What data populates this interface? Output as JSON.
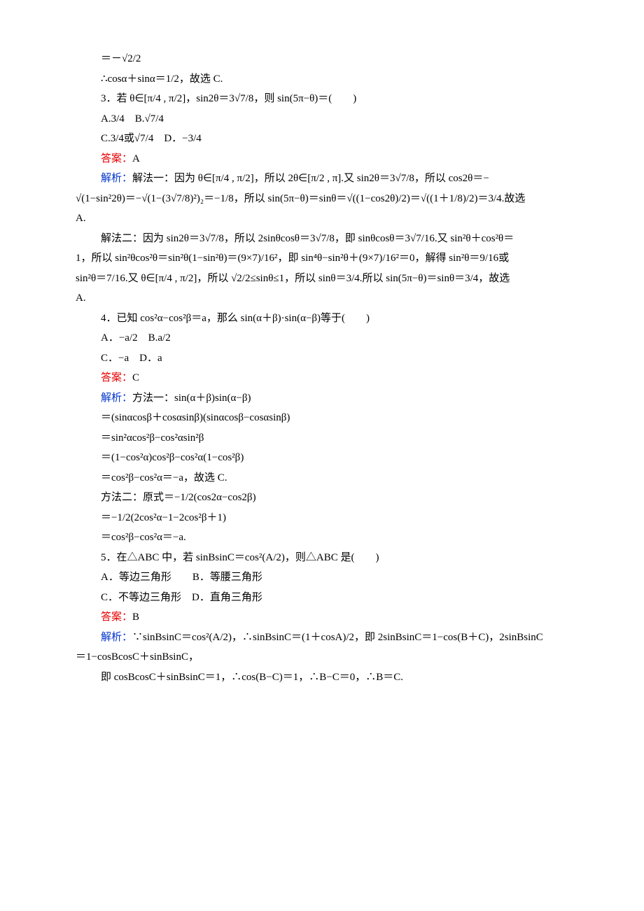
{
  "colors": {
    "text": "#000000",
    "answer": "#e60000",
    "analysis": "#0033cc",
    "bg": "#ffffff"
  },
  "typography": {
    "body_fontsize_pt": 11,
    "line_height": 1.9,
    "font_family": "Times New Roman / SimSun"
  },
  "q2_tail": {
    "line1": "＝－√2/2",
    "line2": "∴cosα＋sinα＝1/2，故选 C."
  },
  "q3": {
    "number": "3．",
    "stem": "若 θ∈[π/4 , π/2]，sin2θ＝3√7/8，则 sin(5π−θ)＝(　　)",
    "optA": "A.3/4",
    "optB": "B.√7/4",
    "optC": "C.3/4或√7/4",
    "optD": "D．−3/4",
    "answer_label": "答案：",
    "answer": "A",
    "analysis_label": "解析：",
    "m1a": "解法一：因为 θ∈[π/4 , π/2]，所以 2θ∈[π/2 , π].又 sin2θ＝3√7/8，所以 cos2θ＝−",
    "m1b": "√(1−sin²2θ)＝−√(1−(3√7/8)²)₂＝−1/8，所以 sin(5π−θ)＝sinθ＝√((1−cos2θ)/2)＝√((1＋1/8)/2)＝3/4.故选",
    "m1c": "A.",
    "m2a": "解法二：因为 sin2θ＝3√7/8，所以 2sinθcosθ＝3√7/8，即 sinθcosθ＝3√7/16.又 sin²θ＋cos²θ＝",
    "m2b": "1，所以 sin²θcos²θ＝sin²θ(1−sin²θ)＝(9×7)/16²，即 sin⁴θ−sin²θ＋(9×7)/16²＝0，解得 sin²θ＝9/16或",
    "m2c": "sin²θ＝7/16.又 θ∈[π/4 , π/2]，所以 √2/2≤sinθ≤1，所以 sinθ＝3/4.所以 sin(5π−θ)＝sinθ＝3/4，故选",
    "m2d": "A."
  },
  "q4": {
    "number": "4．",
    "stem": "已知 cos²α−cos²β＝a，那么 sin(α＋β)·sin(α−β)等于(　　)",
    "optA": "A．−a/2",
    "optB": "B.a/2",
    "optC": "C．−a",
    "optD": "D．a",
    "answer_label": "答案：",
    "answer": "C",
    "analysis_label": "解析：",
    "m1a": "方法一：sin(α＋β)sin(α−β)",
    "m1b": "＝(sinαcosβ＋cosαsinβ)(sinαcosβ−cosαsinβ)",
    "m1c": "＝sin²αcos²β−cos²αsin²β",
    "m1d": "＝(1−cos²α)cos²β−cos²α(1−cos²β)",
    "m1e": "＝cos²β−cos²α＝−a，故选 C.",
    "m2a": "方法二：原式＝−1/2(cos2α−cos2β)",
    "m2b": "＝−1/2(2cos²α−1−2cos²β＋1)",
    "m2c": "＝cos²β−cos²α＝−a."
  },
  "q5": {
    "number": "5．",
    "stem": "在△ABC 中，若 sinBsinC＝cos²(A/2)，则△ABC 是(　　)",
    "optA": "A．等边三角形",
    "optB": "B．等腰三角形",
    "optC": "C．不等边三角形",
    "optD": "D．直角三角形",
    "answer_label": "答案：",
    "answer": "B",
    "analysis_label": "解析：",
    "s1": "∵sinBsinC＝cos²(A/2)，∴sinBsinC＝(1＋cosA)/2，即 2sinBsinC＝1−cos(B＋C)，2sinBsinC",
    "s2": "＝1−cosBcosC＋sinBsinC，",
    "s3": "即 cosBcosC＋sinBsinC＝1，∴cos(B−C)＝1，∴B−C＝0，∴B＝C."
  }
}
